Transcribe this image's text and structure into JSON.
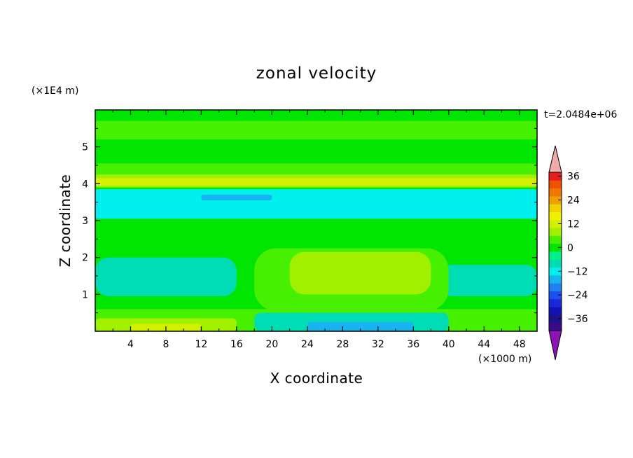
{
  "chart_data": {
    "type": "heatmap",
    "title": "zonal velocity",
    "xlabel": "X coordinate",
    "ylabel": "Z coordinate",
    "x_unit_label": "(×1000 m)",
    "y_unit_label": "(×1E4 m)",
    "time_label": "t=2.0484e+06",
    "xlim": [
      0,
      50
    ],
    "ylim": [
      0,
      6
    ],
    "x_ticks": [
      4,
      8,
      12,
      16,
      20,
      24,
      28,
      32,
      36,
      40,
      44,
      48
    ],
    "y_ticks": [
      1,
      2,
      3,
      4,
      5
    ],
    "x_tick_labels": [
      "4",
      "8",
      "12",
      "16",
      "20",
      "24",
      "28",
      "32",
      "36",
      "40",
      "44",
      "48"
    ],
    "y_tick_labels": [
      "1",
      "2",
      "3",
      "4",
      "5"
    ],
    "colorbar": {
      "levels": [
        -40,
        -36,
        -32,
        -28,
        -24,
        -20,
        -16,
        -12,
        -8,
        -4,
        0,
        4,
        8,
        12,
        16,
        20,
        24,
        28,
        32,
        36,
        40
      ],
      "tick_values": [
        36,
        24,
        12,
        0,
        -12,
        -24,
        -36
      ],
      "tick_labels": [
        "36",
        "24",
        "12",
        "0",
        "−12",
        "−24",
        "−36"
      ],
      "colors": [
        "#3a0a8c",
        "#1c128c",
        "#1212b4",
        "#1a28d8",
        "#1e50ee",
        "#1e82f0",
        "#18b4f0",
        "#00f0f0",
        "#00dcb4",
        "#00f08c",
        "#00e600",
        "#46f000",
        "#a0f000",
        "#d2f000",
        "#f0f000",
        "#f0d200",
        "#f0a000",
        "#f07800",
        "#f05000",
        "#e61e1e"
      ],
      "under_color": "#8c14b4",
      "over_color": "#f0aaaa"
    },
    "regions": [
      {
        "name": "base",
        "value": 2
      },
      {
        "name": "upper-green-band",
        "value": 4,
        "x": [
          0,
          50
        ],
        "z": [
          5.2,
          5.7
        ]
      },
      {
        "name": "band-4-green",
        "value": 4,
        "x": [
          0,
          50
        ],
        "z": [
          4.15,
          4.55
        ]
      },
      {
        "name": "band-4-yellow-green",
        "value": 10,
        "x": [
          0,
          50
        ],
        "z": [
          3.9,
          4.25
        ]
      },
      {
        "name": "band-4-yellow",
        "value": 14,
        "x": [
          0,
          50
        ],
        "z": [
          3.95,
          4.15
        ]
      },
      {
        "name": "cyan-band",
        "value": -10,
        "x": [
          0,
          50
        ],
        "z": [
          3.05,
          3.85
        ]
      },
      {
        "name": "blue-blob",
        "value": -14,
        "x": [
          12,
          20
        ],
        "z": [
          3.55,
          3.7
        ]
      },
      {
        "name": "mid-green-band",
        "value": 2,
        "x": [
          0,
          50
        ],
        "z": [
          2.15,
          2.55
        ]
      },
      {
        "name": "left-cyan",
        "value": -8,
        "x": [
          0,
          16
        ],
        "z": [
          0.95,
          2.0
        ]
      },
      {
        "name": "right-cyan",
        "value": -6,
        "x": [
          39,
          50
        ],
        "z": [
          0.95,
          1.8
        ]
      },
      {
        "name": "central-green",
        "value": 4,
        "x": [
          18,
          40
        ],
        "z": [
          0.55,
          2.25
        ]
      },
      {
        "name": "central-yellow-green",
        "value": 10,
        "x": [
          22,
          38
        ],
        "z": [
          1.0,
          2.15
        ]
      },
      {
        "name": "bottom-green-band",
        "value": 4,
        "x": [
          0,
          50
        ],
        "z": [
          0,
          0.6
        ]
      },
      {
        "name": "bottom-left-yellow-green",
        "value": 10,
        "x": [
          0,
          16
        ],
        "z": [
          0,
          0.35
        ]
      },
      {
        "name": "bottom-left-yellow",
        "value": 14,
        "x": [
          4,
          12
        ],
        "z": [
          0,
          0.2
        ]
      },
      {
        "name": "bottom-cyan",
        "value": -8,
        "x": [
          18,
          40
        ],
        "z": [
          0,
          0.5
        ]
      },
      {
        "name": "bottom-blue",
        "value": -16,
        "x": [
          24,
          36
        ],
        "z": [
          0,
          0.25
        ]
      }
    ]
  }
}
